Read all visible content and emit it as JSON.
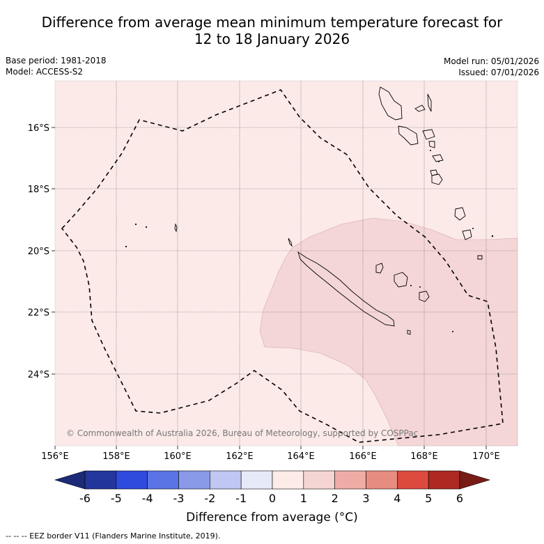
{
  "title": {
    "line1": "Difference from average mean minimum temperature forecast for",
    "line2": "12 to 18 January 2026"
  },
  "meta": {
    "base_period": "Base period: 1981-2018",
    "model": "Model: ACCESS-S2",
    "model_run": "Model run: 05/01/2026",
    "issued": "Issued: 07/01/2026"
  },
  "map": {
    "copyright": "© Commonwealth of Australia 2026, Bureau of Meteorology, supported by COSPPac",
    "lon_labels": [
      "156°E",
      "158°E",
      "160°E",
      "162°E",
      "164°E",
      "166°E",
      "168°E",
      "170°E"
    ],
    "lat_labels": [
      "16°S",
      "18°S",
      "20°S",
      "22°S",
      "24°S"
    ],
    "background_anomaly_range": "0 to 1",
    "warm_region_anomaly_range": "1 to 2",
    "colors": {
      "range_0_1": "#fbeae8",
      "range_1_2": "#f4d6d6"
    }
  },
  "colorbar": {
    "ticks": [
      "-6",
      "-5",
      "-4",
      "-3",
      "-2",
      "-1",
      "0",
      "1",
      "2",
      "3",
      "4",
      "5",
      "6"
    ],
    "colors": [
      "#23369b",
      "#2f4bdd",
      "#5a74e6",
      "#8a9ae9",
      "#c1c7f3",
      "#e6e9f8",
      "#fcebe7",
      "#f5d5d3",
      "#efaca6",
      "#e78c81",
      "#dc4a3e",
      "#ad2921"
    ],
    "under_color": "#1c2a78",
    "over_color": "#7a1c16",
    "label": "Difference from average (°C)"
  },
  "legend": {
    "eez": "--  --  -- EEZ border V11 (Flanders Marine Institute, 2019)."
  }
}
